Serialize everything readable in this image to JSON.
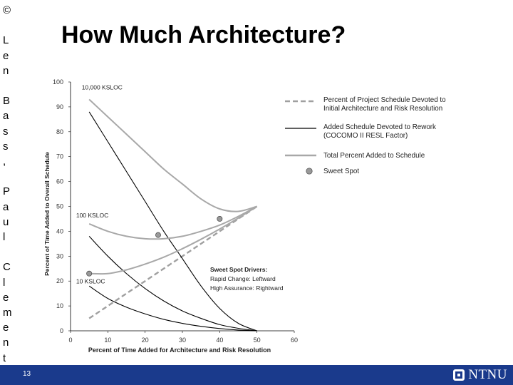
{
  "slide": {
    "side_text": "©\n\nL\ne\nn\n\nB\na\ns\ns\n,\n\nP\na\nu\nl\n\nC\nl\ne\nm\ne\nn\nt\ns",
    "title": "How Much Architecture?",
    "page_number": "13",
    "logo_text": "NTNU",
    "footer_color": "#1a3a8c"
  },
  "chart_data": {
    "type": "line",
    "title": "",
    "xlabel": "Percent of Time Added for Architecture and Risk Resolution",
    "ylabel": "Percent of Time Added to Overall Schedule",
    "xlim": [
      0,
      60
    ],
    "ylim": [
      0,
      100
    ],
    "xticks": [
      0,
      10,
      20,
      30,
      40,
      50,
      60
    ],
    "yticks": [
      0,
      10,
      20,
      30,
      40,
      50,
      60,
      70,
      80,
      90,
      100
    ],
    "grid": false,
    "legend_position": "top-right",
    "legend": [
      {
        "label": "Percent of Project Schedule Devoted to Initial Architecture and Risk Resolution",
        "style": "dashed-gray"
      },
      {
        "label": "Added Schedule Devoted to Rework (COCOMO II RESL Factor)",
        "style": "solid-black"
      },
      {
        "label": "Total Percent Added to Schedule",
        "style": "solid-gray"
      },
      {
        "label": "Sweet Spot",
        "style": "marker"
      }
    ],
    "series": [
      {
        "kind": "architecture",
        "x": [
          5,
          50
        ],
        "y": [
          5,
          50
        ]
      },
      {
        "kind": "rework",
        "label": "10,000 KSLOC",
        "x": [
          5,
          10,
          15,
          20,
          25,
          30,
          35,
          40,
          45,
          50
        ],
        "y": [
          88,
          76,
          64,
          52,
          40,
          29,
          18,
          9,
          3,
          0
        ]
      },
      {
        "kind": "rework",
        "label": "100 KSLOC",
        "x": [
          5,
          10,
          15,
          20,
          25,
          30,
          35,
          40,
          45,
          50
        ],
        "y": [
          38,
          30,
          23,
          17,
          12,
          8,
          5,
          2.5,
          1,
          0
        ]
      },
      {
        "kind": "rework",
        "label": "10 KSLOC",
        "x": [
          5,
          10,
          15,
          20,
          25,
          30,
          35,
          40,
          45,
          50
        ],
        "y": [
          18,
          13,
          9.5,
          6.8,
          4.6,
          3,
          1.8,
          0.9,
          0.3,
          0
        ]
      },
      {
        "kind": "total",
        "label": "10,000 KSLOC",
        "x": [
          5,
          10,
          15,
          20,
          25,
          30,
          35,
          40,
          45,
          50
        ],
        "y": [
          93,
          86,
          79,
          72,
          65,
          59,
          53,
          49,
          48,
          50
        ]
      },
      {
        "kind": "total",
        "label": "100 KSLOC",
        "x": [
          5,
          10,
          15,
          20,
          25,
          30,
          35,
          40,
          45,
          50
        ],
        "y": [
          43,
          40,
          38,
          37,
          37,
          38,
          40,
          42.5,
          46,
          50
        ]
      },
      {
        "kind": "total",
        "label": "10 KSLOC",
        "x": [
          5,
          10,
          15,
          20,
          25,
          30,
          35,
          40,
          45,
          50
        ],
        "y": [
          23,
          23,
          24.5,
          26.8,
          29.6,
          33,
          36.8,
          40.9,
          45.3,
          50
        ]
      }
    ],
    "sweet_spots": [
      {
        "x": 40,
        "y": 45
      },
      {
        "x": 23.5,
        "y": 38.5
      },
      {
        "x": 5,
        "y": 23
      }
    ],
    "curve_labels": [
      {
        "text": "10,000 KSLOC",
        "x": 3,
        "y": 97
      },
      {
        "text": "100 KSLOC",
        "x": 1.5,
        "y": 45.5
      },
      {
        "text": "10 KSLOC",
        "x": 1.5,
        "y": 19
      }
    ],
    "annotation": {
      "lines": [
        "Sweet Spot Drivers:",
        "Rapid Change: Leftward",
        "High Assurance: Rightward"
      ]
    },
    "colors": {
      "architecture": "#a0a0a0",
      "rework": "#000000",
      "total": "#a8a8a8",
      "sweet_spot": "#999999"
    }
  }
}
